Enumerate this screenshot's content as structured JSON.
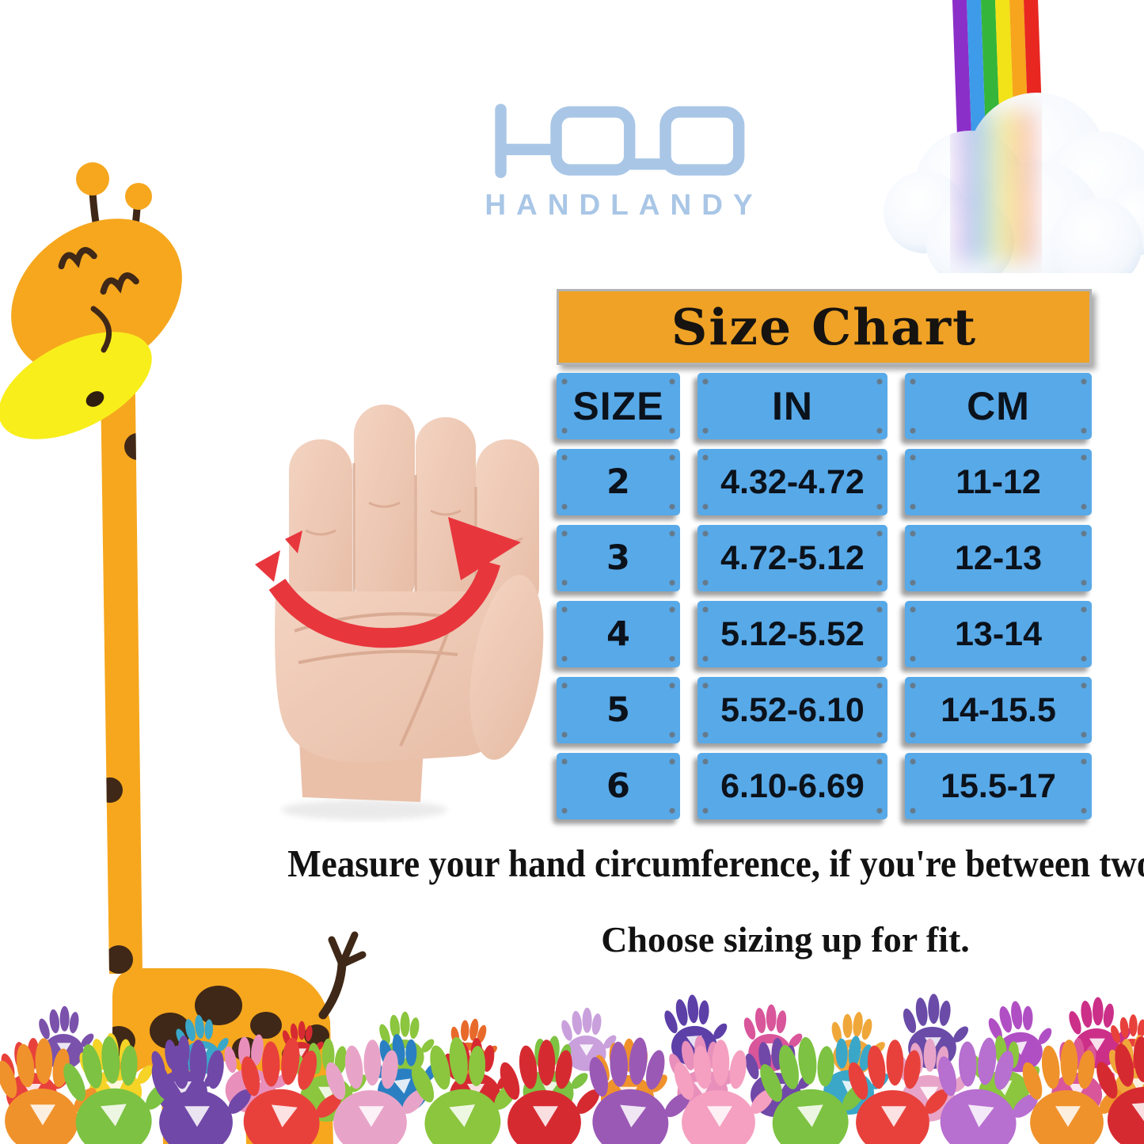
{
  "brand": {
    "name": "HANDLANDY"
  },
  "size_chart": {
    "title": "Size Chart",
    "columns": [
      "SIZE",
      "IN",
      "CM"
    ],
    "rows": [
      [
        "2",
        "4.32-4.72",
        "11-12"
      ],
      [
        "3",
        "4.72-5.12",
        "12-13"
      ],
      [
        "4",
        "5.12-5.52",
        "13-14"
      ],
      [
        "5",
        "5.52-6.10",
        "14-15.5"
      ],
      [
        "6",
        "6.10-6.69",
        "15.5-17"
      ]
    ]
  },
  "notes": {
    "line1": "Measure your hand circumference, if you're between two sizes",
    "line2": "Choose sizing up for fit."
  },
  "colors": {
    "chart_header_bg": "#efa226",
    "chart_cell_bg": "#58a9e8",
    "logo_blue": "#a9c6e6",
    "giraffe_orange": "#f6a71e",
    "arrow_red": "#e8363d"
  },
  "icons": {
    "logo": "glasses-logo-icon",
    "giraffe": "giraffe-illustration",
    "rainbow_cloud": "rainbow-cloud-illustration",
    "hand": "hand-circumference-illustration",
    "handprints": "handprint-border-illustration"
  },
  "chart_data": {
    "type": "table",
    "title": "Size Chart",
    "columns": [
      "SIZE",
      "IN",
      "CM"
    ],
    "rows": [
      [
        "2",
        "4.32-4.72",
        "11-12"
      ],
      [
        "3",
        "4.72-5.12",
        "12-13"
      ],
      [
        "4",
        "5.12-5.52",
        "13-14"
      ],
      [
        "5",
        "5.52-6.10",
        "14-15.5"
      ],
      [
        "6",
        "6.10-6.69",
        "15.5-17"
      ]
    ],
    "notes": [
      "Measure your hand circumference, if you're between two sizes",
      "Choose sizing up for fit."
    ]
  }
}
